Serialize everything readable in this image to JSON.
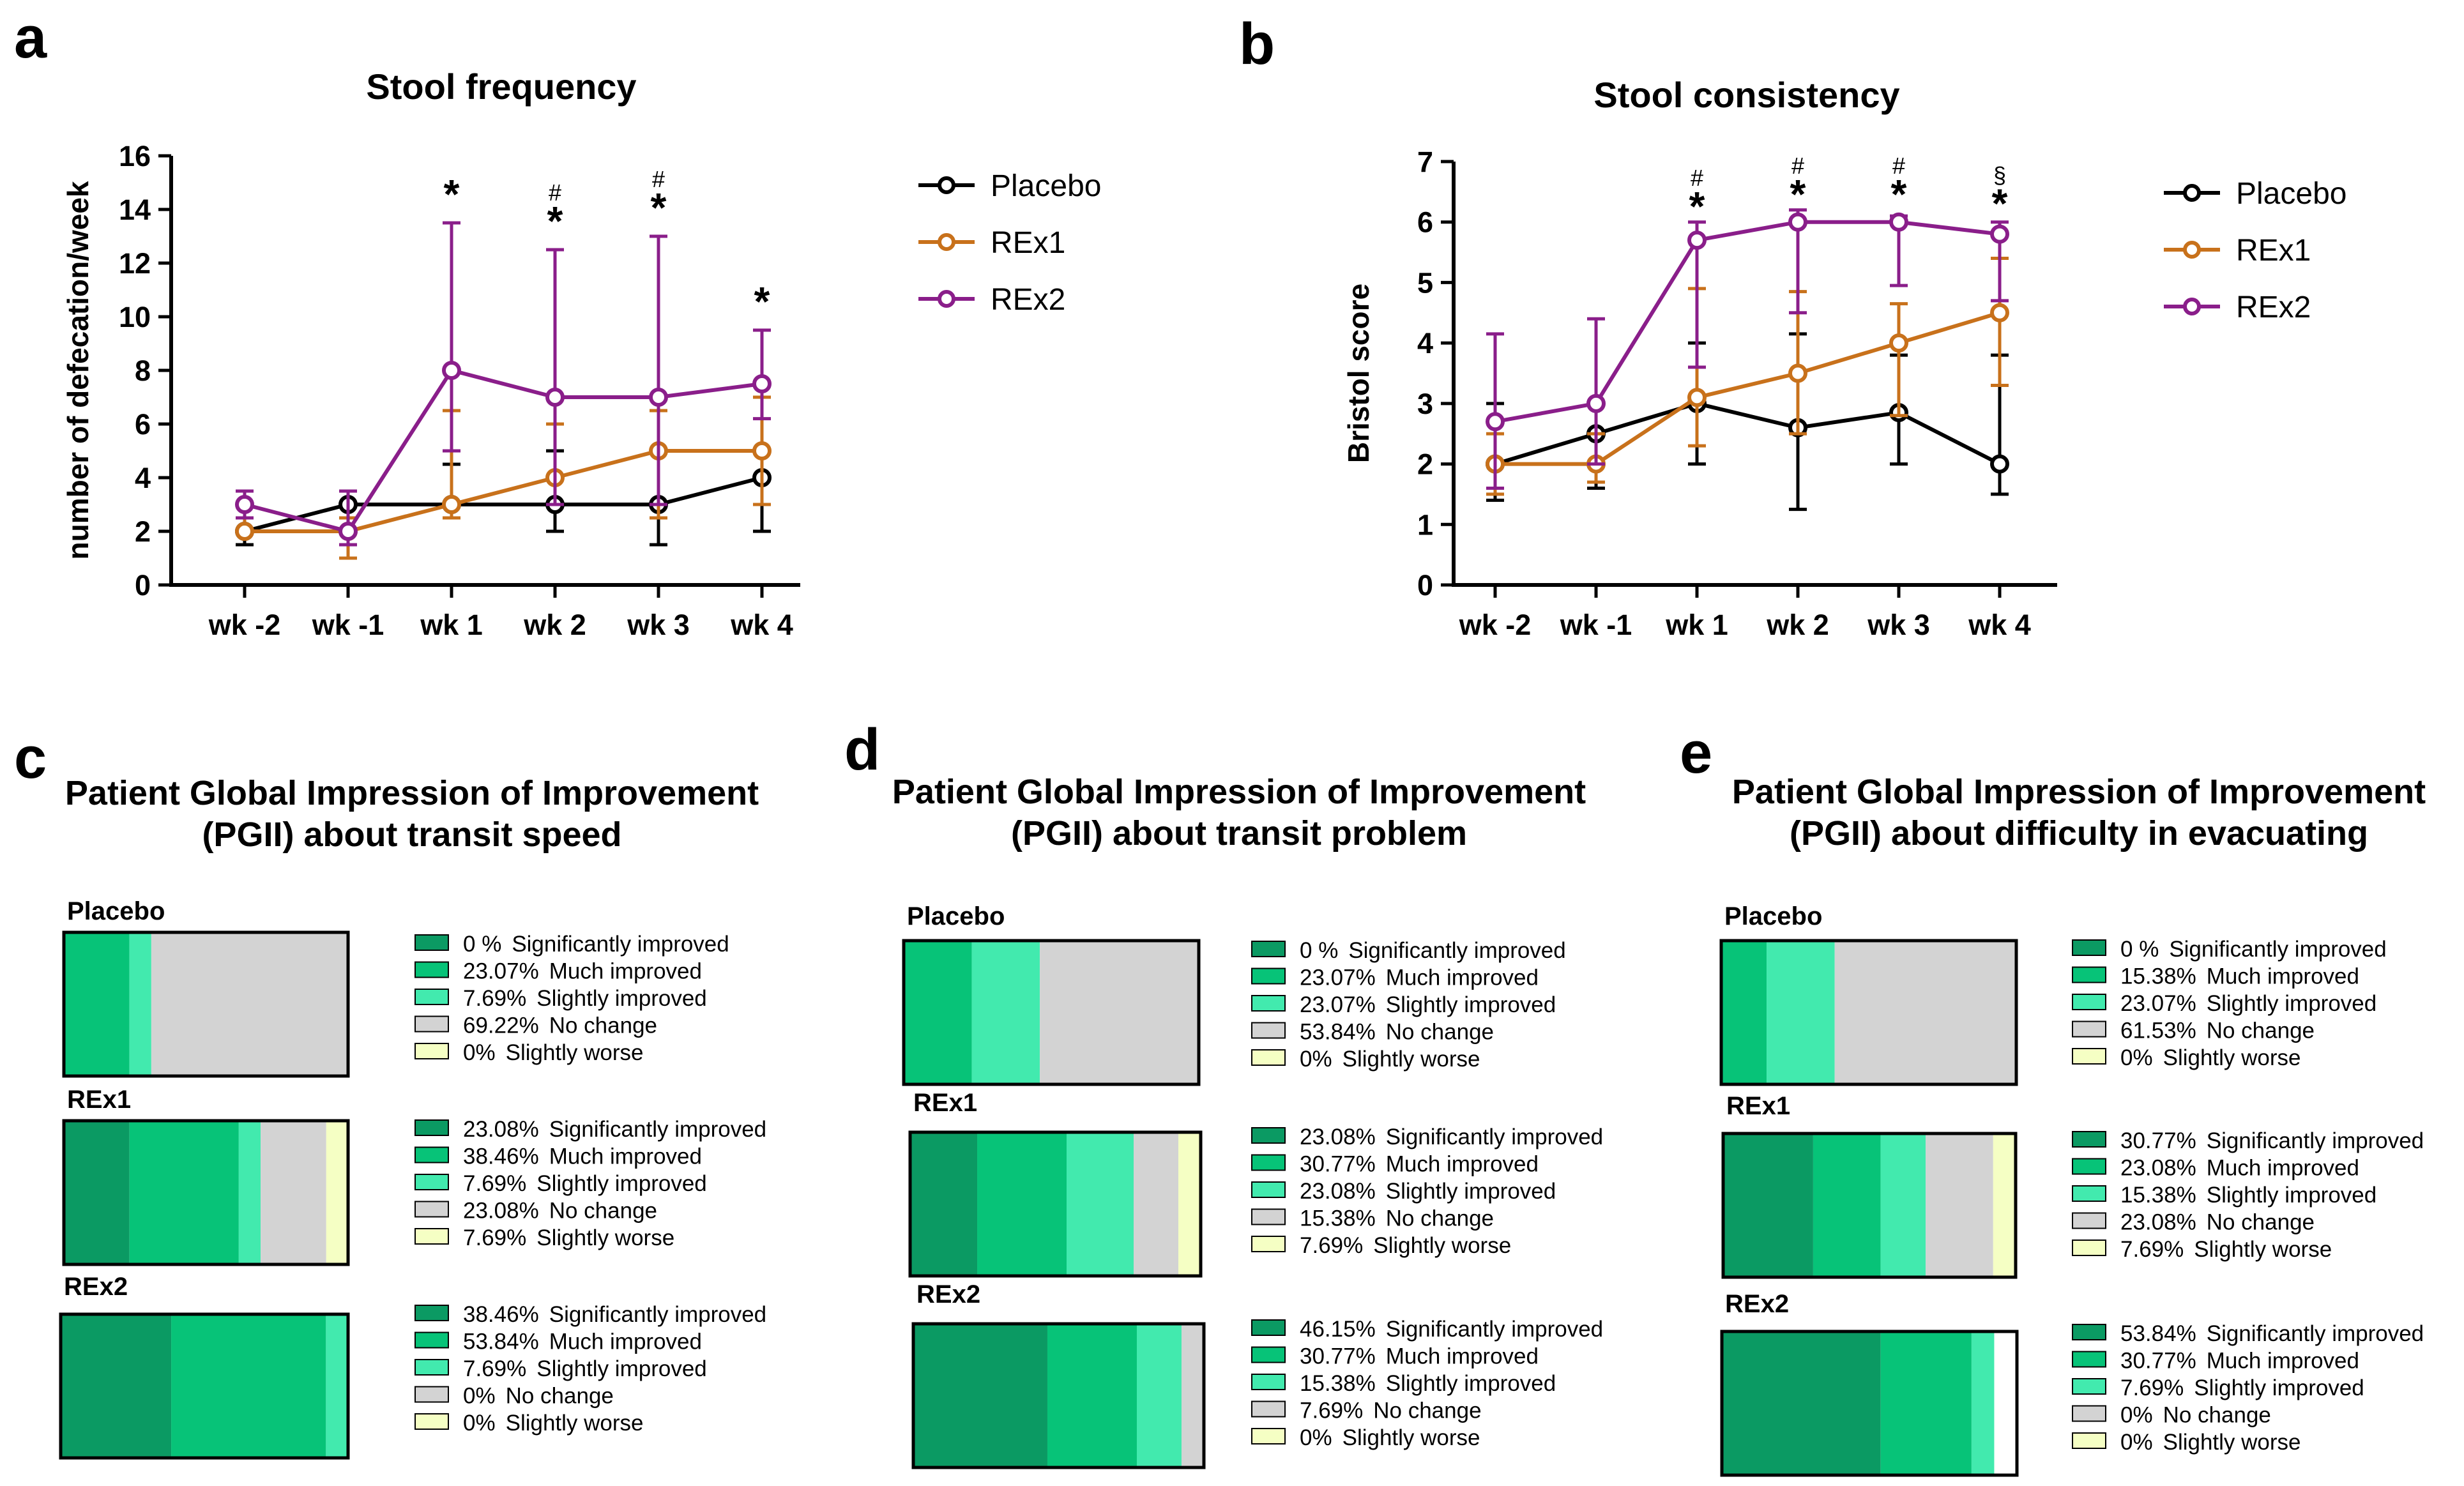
{
  "colors": {
    "Placebo": "#000000",
    "REx1": "#c8711b",
    "REx2": "#8a1e8a",
    "Significantly improved": "#0b9a63",
    "Much improved": "#07c378",
    "Slightly improved": "#42eaae",
    "No change": "#d3d3d3",
    "Slightly worse": "#f5ffc4"
  },
  "chart_data": [
    {
      "panel": "a",
      "type": "line",
      "title": "Stool frequency",
      "xlabel": "",
      "ylabel": "number of defecation/week",
      "categories": [
        "wk -2",
        "wk -1",
        "wk 1",
        "wk 2",
        "wk 3",
        "wk 4"
      ],
      "ylim": [
        0,
        16
      ],
      "yticks": [
        0,
        2,
        4,
        6,
        8,
        10,
        12,
        14,
        16
      ],
      "series": [
        {
          "name": "Placebo",
          "values": [
            2,
            3,
            3,
            3,
            3,
            4
          ],
          "err_low": [
            1.5,
            2.5,
            2.5,
            2,
            1.5,
            2
          ],
          "err_high": [
            2.5,
            3.5,
            4.5,
            5,
            5,
            5
          ]
        },
        {
          "name": "REx1",
          "values": [
            2,
            2,
            3,
            4,
            5,
            5
          ],
          "err_low": [
            2,
            1,
            2.5,
            3,
            2.5,
            3
          ],
          "err_high": [
            2.5,
            2.5,
            6.5,
            6,
            6.5,
            7
          ]
        },
        {
          "name": "REx2",
          "values": [
            3,
            2,
            8,
            7,
            7,
            7.5
          ],
          "err_low": [
            2.5,
            1.5,
            5,
            3,
            3,
            6.2
          ],
          "err_high": [
            3.5,
            3.5,
            13.5,
            12.5,
            13,
            9.5
          ]
        }
      ],
      "annotations": [
        {
          "category": "wk 1",
          "y": 15,
          "symbols": [
            "*"
          ]
        },
        {
          "category": "wk 2",
          "y": 14,
          "symbols": [
            "*",
            "#"
          ]
        },
        {
          "category": "wk 3",
          "y": 14.5,
          "symbols": [
            "*",
            "#"
          ]
        },
        {
          "category": "wk 4",
          "y": 11,
          "symbols": [
            "*"
          ]
        }
      ],
      "legend": [
        "Placebo",
        "REx1",
        "REx2"
      ],
      "legend_position": "right"
    },
    {
      "panel": "b",
      "type": "line",
      "title": "Stool consistency",
      "xlabel": "",
      "ylabel": "Bristol score",
      "categories": [
        "wk -2",
        "wk -1",
        "wk 1",
        "wk 2",
        "wk 3",
        "wk 4"
      ],
      "ylim": [
        0,
        7
      ],
      "yticks": [
        0,
        1,
        2,
        3,
        4,
        5,
        6,
        7
      ],
      "series": [
        {
          "name": "Placebo",
          "values": [
            2,
            2.5,
            3,
            2.6,
            2.85,
            2
          ],
          "err_low": [
            1.4,
            1.6,
            2,
            1.25,
            2,
            1.5
          ],
          "err_high": [
            3,
            3,
            4,
            4.15,
            3.8,
            3.8
          ]
        },
        {
          "name": "REx1",
          "values": [
            2,
            2,
            3.1,
            3.5,
            4,
            4.5
          ],
          "err_low": [
            1.5,
            1.7,
            2.3,
            2.5,
            2.8,
            3.3
          ],
          "err_high": [
            2.5,
            2.5,
            4.9,
            4.85,
            4.65,
            5.4
          ]
        },
        {
          "name": "REx2",
          "values": [
            2.7,
            3,
            5.7,
            6,
            6,
            5.8
          ],
          "err_low": [
            1.6,
            2,
            3.6,
            4.5,
            4.95,
            4.7
          ],
          "err_high": [
            4.15,
            4.4,
            6,
            6.2,
            6.1,
            6
          ]
        }
      ],
      "annotations": [
        {
          "category": "wk 1",
          "y": 6.45,
          "symbols": [
            "*",
            "#"
          ]
        },
        {
          "category": "wk 2",
          "y": 6.65,
          "symbols": [
            "*",
            "#"
          ]
        },
        {
          "category": "wk 3",
          "y": 6.65,
          "symbols": [
            "*",
            "#"
          ]
        },
        {
          "category": "wk 4",
          "y": 6.5,
          "symbols": [
            "*",
            "§"
          ]
        }
      ],
      "legend": [
        "Placebo",
        "REx1",
        "REx2"
      ],
      "legend_position": "right"
    },
    {
      "panel": "c",
      "type": "bar",
      "subtype": "stacked-horizontal-100",
      "title_lines": [
        "Patient Global Impression of Improvement",
        "(PGII) about transit speed"
      ],
      "categories": [
        "Significantly improved",
        "Much improved",
        "Slightly improved",
        "No change",
        "Slightly worse"
      ],
      "groups": [
        {
          "name": "Placebo",
          "values": [
            0,
            23.07,
            7.69,
            69.22,
            0
          ],
          "labels": [
            "0 %",
            "23.07%",
            "7.69%",
            "69.22%",
            "0%"
          ],
          "category_labels": [
            "Significantly improved",
            "Much improved",
            "Slightly improved",
            "No change",
            "Slightly worse"
          ]
        },
        {
          "name": "REx1",
          "values": [
            23.08,
            38.46,
            7.69,
            23.08,
            7.69
          ],
          "labels": [
            "23.08%",
            "38.46%",
            "7.69%",
            "23.08%",
            "7.69%"
          ],
          "category_labels": [
            "Significantly improved",
            "Much improved",
            "Slightly improved",
            "No change",
            "Slightly worse"
          ]
        },
        {
          "name": "REx2",
          "values": [
            38.46,
            53.84,
            7.69,
            0,
            0
          ],
          "labels": [
            "38.46%",
            "53.84%",
            "7.69%",
            "0%",
            "0%"
          ],
          "category_labels": [
            "Significantly improved",
            "Much improved",
            "Slightly improved",
            "No change",
            "Slightly worse"
          ]
        }
      ]
    },
    {
      "panel": "d",
      "type": "bar",
      "subtype": "stacked-horizontal-100",
      "title_lines": [
        "Patient Global Impression of Improvement",
        "(PGII) about transit problem"
      ],
      "categories": [
        "Significantly improved",
        "Much improved",
        "Slightly improved",
        "No change",
        "Slightly worse"
      ],
      "groups": [
        {
          "name": "Placebo",
          "values": [
            0,
            23.07,
            23.07,
            53.84,
            0
          ],
          "labels": [
            "0 %",
            "23.07%",
            "23.07%",
            "53.84%",
            "0%"
          ],
          "category_labels": [
            "Significantly improved",
            "Much improved",
            "Slightly improved",
            "No change",
            "Slightly worse"
          ]
        },
        {
          "name": "REx1",
          "values": [
            23.08,
            30.77,
            23.08,
            15.38,
            7.69
          ],
          "labels": [
            "23.08%",
            "30.77%",
            "23.08%",
            "15.38%",
            "7.69%"
          ],
          "category_labels": [
            "Significantly improved",
            "Much improved",
            "Slightly improved",
            "No change",
            "Slightly worse"
          ]
        },
        {
          "name": "REx2",
          "values": [
            46.15,
            30.77,
            15.38,
            7.69,
            0
          ],
          "labels": [
            "46.15%",
            "30.77%",
            "15.38%",
            "7.69%",
            "0%"
          ],
          "category_labels": [
            "Significantly improved",
            "Much improved",
            "Slightly improved",
            "No change",
            "Slightly worse"
          ]
        }
      ]
    },
    {
      "panel": "e",
      "type": "bar",
      "subtype": "stacked-horizontal-100",
      "title_lines": [
        "Patient Global Impression of Improvement",
        "(PGII) about difficulty in evacuating"
      ],
      "categories": [
        "Significantly improved",
        "Much improved",
        "Slightly improved",
        "No change",
        "Slightly worse"
      ],
      "groups": [
        {
          "name": "Placebo",
          "values": [
            0,
            15.38,
            23.07,
            61.53,
            0
          ],
          "labels": [
            "0 %",
            "15.38%",
            "23.07%",
            "61.53%",
            "0%"
          ],
          "category_labels": [
            "Significantly improved",
            "Much improved",
            "Slightly improved",
            "No change",
            "Slightly worse"
          ]
        },
        {
          "name": "REx1",
          "values": [
            30.77,
            23.08,
            15.38,
            23.08,
            7.69
          ],
          "labels": [
            "30.77%",
            "23.08%",
            "15.38%",
            "23.08%",
            "7.69%"
          ],
          "category_labels": [
            "Significantly improved",
            "Much improved",
            "Slightly improved",
            "No change",
            "Slightly worse"
          ]
        },
        {
          "name": "REx2",
          "values": [
            53.84,
            30.77,
            7.69,
            0,
            0
          ],
          "labels": [
            "53.84%",
            "30.77%",
            "7.69%",
            "0%",
            "0%"
          ],
          "category_labels": [
            "Significantly improved",
            "Much improved",
            "Slightly improved",
            "No change",
            "Slightly worse"
          ]
        }
      ]
    }
  ]
}
